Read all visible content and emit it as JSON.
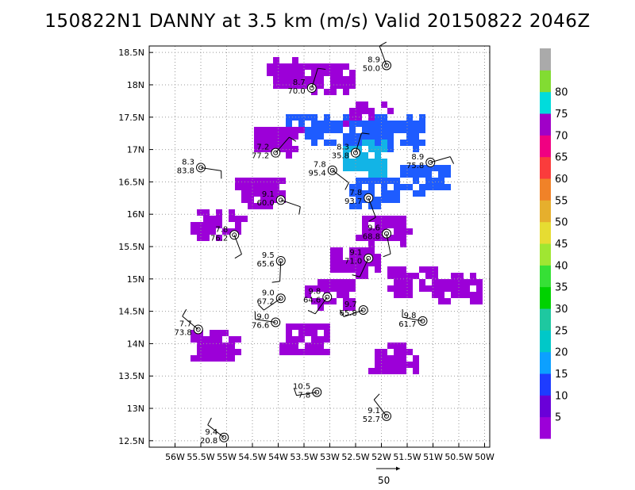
{
  "title": "150822N1 DANNY at 3.5 km (m/s) Valid 20150822 2046Z",
  "vector_scale_label": "50",
  "chart_data": {
    "type": "heatmap",
    "title": "150822N1 DANNY at 3.5 km (m/s) Valid 20150822 2046Z",
    "xlim": [
      -56.5,
      -49.9
    ],
    "ylim": [
      12.4,
      18.6
    ],
    "grid": true,
    "x_ticks": [
      {
        "v": -56.0,
        "label": "56W"
      },
      {
        "v": -55.5,
        "label": "55.5W"
      },
      {
        "v": -55.0,
        "label": "55W"
      },
      {
        "v": -54.5,
        "label": "54.5W"
      },
      {
        "v": -54.0,
        "label": "54W"
      },
      {
        "v": -53.5,
        "label": "53.5W"
      },
      {
        "v": -53.0,
        "label": "53W"
      },
      {
        "v": -52.5,
        "label": "52.5W"
      },
      {
        "v": -52.0,
        "label": "52W"
      },
      {
        "v": -51.5,
        "label": "51.5W"
      },
      {
        "v": -51.0,
        "label": "51W"
      },
      {
        "v": -50.5,
        "label": "50.5W"
      },
      {
        "v": -50.0,
        "label": "50W"
      }
    ],
    "y_ticks": [
      {
        "v": 12.5,
        "label": "12.5N"
      },
      {
        "v": 13.0,
        "label": "13N"
      },
      {
        "v": 13.5,
        "label": "13.5N"
      },
      {
        "v": 14.0,
        "label": "14N"
      },
      {
        "v": 14.5,
        "label": "14.5N"
      },
      {
        "v": 15.0,
        "label": "15N"
      },
      {
        "v": 15.5,
        "label": "15.5N"
      },
      {
        "v": 16.0,
        "label": "16N"
      },
      {
        "v": 16.5,
        "label": "16.5N"
      },
      {
        "v": 17.0,
        "label": "17N"
      },
      {
        "v": 17.5,
        "label": "17.5N"
      },
      {
        "v": 18.0,
        "label": "18N"
      },
      {
        "v": 18.5,
        "label": "18.5N"
      }
    ],
    "colorbar": {
      "labels": [
        "5",
        "10",
        "15",
        "20",
        "25",
        "30",
        "35",
        "40",
        "45",
        "50",
        "55",
        "60",
        "65",
        "70",
        "75",
        "80"
      ],
      "colors": [
        "#9c00d8",
        "#6a00d8",
        "#1e3cff",
        "#0ca0ff",
        "#00c8c8",
        "#1ec8a0",
        "#00d200",
        "#36e036",
        "#a0e632",
        "#e6dc32",
        "#e6af2d",
        "#f08228",
        "#fa3c3c",
        "#f00082",
        "#a000c8",
        "#00dcdc",
        "#82dc32",
        "#aaaaaa"
      ]
    },
    "series": [
      {
        "type": "wind_swath",
        "values": [
          {
            "x": -53.75,
            "y": 18.2,
            "v": 5
          },
          {
            "x": -53.0,
            "y": 18.15,
            "v": 5
          },
          {
            "x": -52.3,
            "y": 17.5,
            "v": 5
          },
          {
            "x": -52.5,
            "y": 17.3,
            "v": 12
          },
          {
            "x": -51.7,
            "y": 17.3,
            "v": 12
          },
          {
            "x": -52.4,
            "y": 16.9,
            "v": 20
          },
          {
            "x": -51.2,
            "y": 16.6,
            "v": 12
          },
          {
            "x": -52.2,
            "y": 16.4,
            "v": 12
          },
          {
            "x": -52.0,
            "y": 15.8,
            "v": 5
          },
          {
            "x": -52.6,
            "y": 15.3,
            "v": 5
          },
          {
            "x": -51.4,
            "y": 15.0,
            "v": 5
          },
          {
            "x": -50.6,
            "y": 14.9,
            "v": 5
          },
          {
            "x": -53.5,
            "y": 17.35,
            "v": 12
          },
          {
            "x": -54.1,
            "y": 17.2,
            "v": 5
          },
          {
            "x": -54.4,
            "y": 16.4,
            "v": 5
          },
          {
            "x": -55.2,
            "y": 15.9,
            "v": 5
          },
          {
            "x": -53.0,
            "y": 14.8,
            "v": 5
          },
          {
            "x": -53.5,
            "y": 14.1,
            "v": 5
          },
          {
            "x": -51.8,
            "y": 13.8,
            "v": 5
          },
          {
            "x": -55.3,
            "y": 14.0,
            "v": 5
          }
        ]
      }
    ],
    "annotations": [
      {
        "x": -51.9,
        "y": 18.3,
        "speed": "8.9",
        "dir": "50.0"
      },
      {
        "x": -53.35,
        "y": 17.95,
        "speed": "8.7",
        "dir": "70.0"
      },
      {
        "x": -54.05,
        "y": 16.95,
        "speed": "7.2",
        "dir": "77.2"
      },
      {
        "x": -52.5,
        "y": 16.95,
        "speed": "8.3",
        "dir": "35.8"
      },
      {
        "x": -51.05,
        "y": 16.8,
        "speed": "8.9",
        "dir": "75.8"
      },
      {
        "x": -55.5,
        "y": 16.72,
        "speed": "8.3",
        "dir": "83.8"
      },
      {
        "x": -52.95,
        "y": 16.68,
        "speed": "7.8",
        "dir": "95.4"
      },
      {
        "x": -53.95,
        "y": 16.22,
        "speed": "9.1",
        "dir": "60.0"
      },
      {
        "x": -52.25,
        "y": 16.25,
        "speed": "7.8",
        "dir": "93.7"
      },
      {
        "x": -54.85,
        "y": 15.68,
        "speed": "7.8",
        "dir": "76.2"
      },
      {
        "x": -51.9,
        "y": 15.7,
        "speed": "9.6",
        "dir": "68.8"
      },
      {
        "x": -53.95,
        "y": 15.28,
        "speed": "9.5",
        "dir": "65.6"
      },
      {
        "x": -52.25,
        "y": 15.32,
        "speed": "9.1",
        "dir": "71.0"
      },
      {
        "x": -53.05,
        "y": 14.72,
        "speed": "9.8",
        "dir": "64.6"
      },
      {
        "x": -53.95,
        "y": 14.7,
        "speed": "9.0",
        "dir": "67.2"
      },
      {
        "x": -52.35,
        "y": 14.52,
        "speed": "9.7",
        "dir": "65.8"
      },
      {
        "x": -54.05,
        "y": 14.33,
        "speed": "9.0",
        "dir": "76.6"
      },
      {
        "x": -51.2,
        "y": 14.35,
        "speed": "9.8",
        "dir": "61.7"
      },
      {
        "x": -55.55,
        "y": 14.22,
        "speed": "7.7",
        "dir": "73.8"
      },
      {
        "x": -53.25,
        "y": 13.25,
        "speed": "10.5",
        "dir": "7.8"
      },
      {
        "x": -51.9,
        "y": 12.88,
        "speed": "9.1",
        "dir": "52.7"
      },
      {
        "x": -55.05,
        "y": 12.55,
        "speed": "9.4",
        "dir": "20.8"
      }
    ]
  }
}
